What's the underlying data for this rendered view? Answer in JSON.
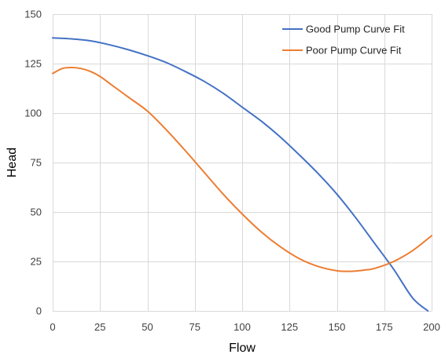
{
  "chart_data": {
    "type": "line",
    "title": "",
    "xlabel": "Flow",
    "ylabel": "Head",
    "xlim": [
      0,
      200
    ],
    "ylim": [
      0,
      150
    ],
    "x_ticks": [
      "0",
      "25",
      "50",
      "75",
      "100",
      "125",
      "150",
      "175",
      "200"
    ],
    "y_ticks": [
      "0",
      "25",
      "50",
      "75",
      "100",
      "125",
      "150"
    ],
    "grid": true,
    "legend_position": "top-right",
    "series": [
      {
        "name": "Good Pump Curve Fit",
        "color": "#4472c4",
        "x": [
          0,
          10,
          20,
          30,
          40,
          50,
          60,
          70,
          80,
          90,
          100,
          110,
          120,
          130,
          140,
          150,
          160,
          170,
          180,
          190,
          198
        ],
        "y": [
          138,
          137.5,
          136.5,
          134.5,
          132,
          129,
          125.5,
          121,
          116,
          110,
          103,
          96,
          88,
          79,
          69.5,
          59,
          47,
          34,
          21,
          6.5,
          0
        ]
      },
      {
        "name": "Poor Pump Curve Fit",
        "color": "#ed7d31",
        "x": [
          0,
          5,
          10,
          15,
          20,
          25,
          30,
          40,
          50,
          60,
          70,
          80,
          90,
          100,
          110,
          120,
          130,
          140,
          150,
          157,
          165,
          170,
          180,
          190,
          200
        ],
        "y": [
          120,
          122.5,
          123,
          122.5,
          121,
          118.5,
          115,
          108,
          101,
          91.5,
          81,
          70,
          59,
          49,
          40,
          32.5,
          26.5,
          22.5,
          20.3,
          20,
          20.7,
          21.5,
          25,
          30.5,
          38
        ]
      }
    ]
  }
}
